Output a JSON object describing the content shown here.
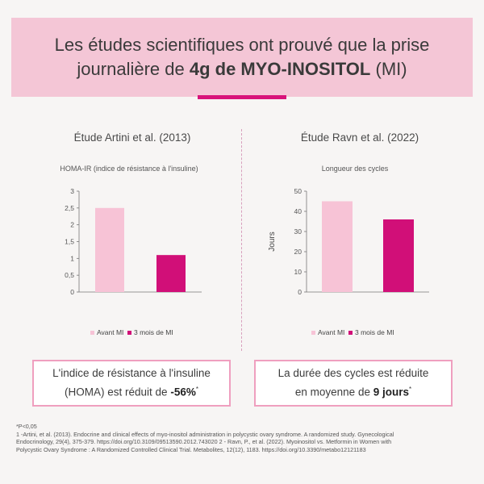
{
  "header": {
    "line1": "Les études scientifiques ont prouvé que la prise",
    "line2_pre": "journalière de ",
    "line2_bold": "4g de MYO-INOSITOL",
    "line2_post": " (MI)"
  },
  "colors": {
    "header_bg": "#f4c6d6",
    "accent": "#d8137a",
    "light_bar": "#f7c3d6",
    "dark_bar": "#d10f78"
  },
  "left": {
    "study_title": "Étude Artini et al. (2013)",
    "result_line1": "L'indice de résistance à l'insuline",
    "result_line2_pre": "(HOMA) est réduit de ",
    "result_line2_bold": "-56%",
    "result_line2_sup": "*"
  },
  "right": {
    "study_title": "Étude Ravn et al. (2022)",
    "result_line1": "La durée des cycles est réduite",
    "result_line2_pre": "en moyenne de ",
    "result_line2_bold": "9 jours",
    "result_line2_sup": "*"
  },
  "chart_data": [
    {
      "type": "bar",
      "title": "HOMA-IR (indice de résistance à l'insuline)",
      "ylabel": "",
      "categories": [
        "Avant MI",
        "3 mois de MI"
      ],
      "values": [
        2.5,
        1.1
      ],
      "ylim": [
        0,
        3
      ],
      "yticks": [
        0,
        0.5,
        1,
        1.5,
        2,
        2.5,
        3
      ],
      "ytick_labels": [
        "0",
        "0,5",
        "1",
        "1,5",
        "2",
        "2,5",
        "3"
      ],
      "legend": [
        "Avant MI",
        "3 mois de MI"
      ],
      "legend_position": "bottom",
      "grid": false
    },
    {
      "type": "bar",
      "title": "Longueur des cycles",
      "ylabel": "Jours",
      "categories": [
        "Avant MI",
        "3 mois de MI"
      ],
      "values": [
        45,
        36
      ],
      "ylim": [
        0,
        50
      ],
      "yticks": [
        0,
        10,
        20,
        30,
        40,
        50
      ],
      "ytick_labels": [
        "0",
        "10",
        "20",
        "30",
        "40",
        "50"
      ],
      "legend": [
        "Avant MI",
        "3 mois de MI"
      ],
      "legend_position": "bottom",
      "grid": false
    }
  ],
  "footnotes": {
    "line1": "*P<0,05",
    "line2": "1 -Artini, et al. (2013). Endocrine and clinical effects of myo-inositol administration in polycystic ovary syndrome. A randomized study. Gynecological",
    "line3": "Endocrinology, 29(4), 375-379. https://doi.org/10.3109/09513590.2012.743020 2 - Ravn, P., et al. (2022). Myoinositol vs. Metformin in Women with",
    "line4": "Polycystic Ovary Syndrome : A Randomized Controlled Clinical Trial. Metabolites, 12(12), 1183. https://doi.org/10.3390/metabo12121183"
  }
}
